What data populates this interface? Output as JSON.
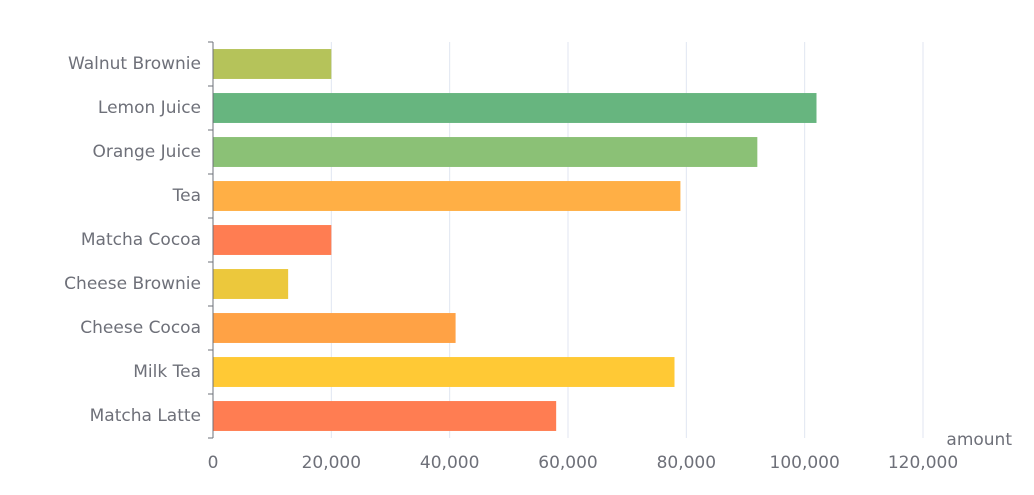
{
  "chart_data": {
    "type": "bar",
    "orientation": "horizontal",
    "categories": [
      "Walnut Brownie",
      "Lemon Juice",
      "Orange Juice",
      "Tea",
      "Matcha Cocoa",
      "Cheese Brownie",
      "Cheese Cocoa",
      "Milk Tea",
      "Matcha Latte"
    ],
    "values": [
      20000,
      102000,
      92000,
      79000,
      20000,
      12700,
      41000,
      78000,
      58000
    ],
    "colors": [
      "#b5c35a",
      "#67b57f",
      "#8bc176",
      "#ffaf45",
      "#ff7d52",
      "#ecc83c",
      "#ffa245",
      "#ffc935",
      "#ff7d52"
    ],
    "xlabel": "amount",
    "ylabel": "",
    "xlim": [
      0,
      120000
    ],
    "xticks": [
      0,
      20000,
      40000,
      60000,
      80000,
      100000,
      120000
    ],
    "xtick_labels": [
      "0",
      "20,000",
      "40,000",
      "60,000",
      "80,000",
      "100,000",
      "120,000"
    ],
    "grid": "vertical",
    "legend": "none"
  }
}
